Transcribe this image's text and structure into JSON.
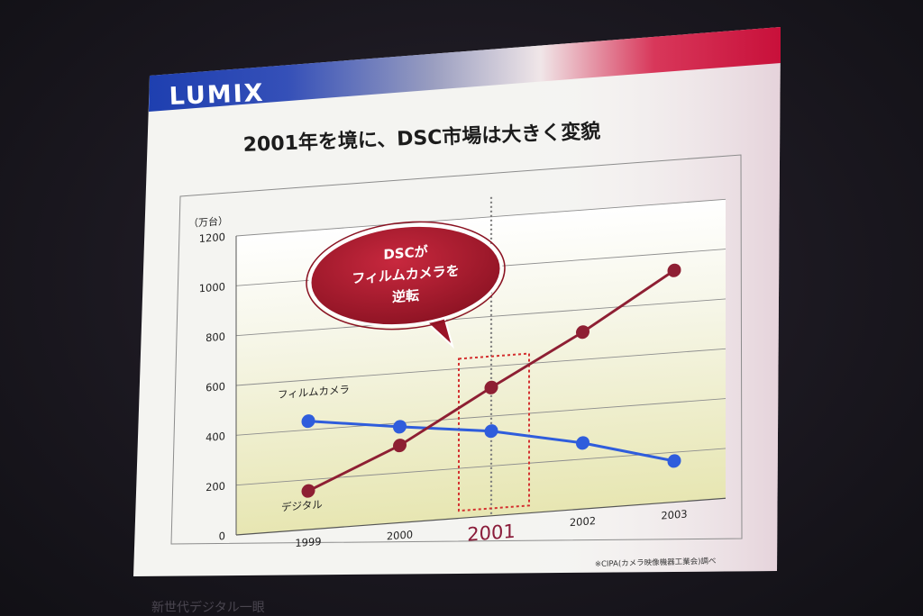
{
  "brand": {
    "name": "LUMIX"
  },
  "slide_title": "2001年を境に、DSC市場は大きく変貌",
  "chart_data": {
    "type": "line",
    "title": "2001年を境に、DSC市場は大きく変貌",
    "ylabel": "（万台）",
    "xlabel": "",
    "categories": [
      "1999",
      "2000",
      "2001",
      "2002",
      "2003"
    ],
    "y_ticks": [
      0,
      200,
      400,
      600,
      800,
      1000,
      1200
    ],
    "ylim": [
      0,
      1200
    ],
    "grid": true,
    "series": [
      {
        "name": "フィルムカメラ",
        "color": "#2f5ddc",
        "values": [
          435,
          385,
          340,
          265,
          165
        ]
      },
      {
        "name": "デジタル",
        "color": "#8e1f33",
        "values": [
          155,
          310,
          515,
          710,
          930
        ]
      }
    ],
    "highlight": {
      "category": "2001",
      "label": "2001"
    },
    "annotation": {
      "lines": [
        "DSCが",
        "フィルムカメラを",
        "逆転"
      ]
    }
  },
  "source_note": "※CIPA(カメラ映像機器工業会)調べ",
  "bottom_caption": "新世代デジタル一眼"
}
